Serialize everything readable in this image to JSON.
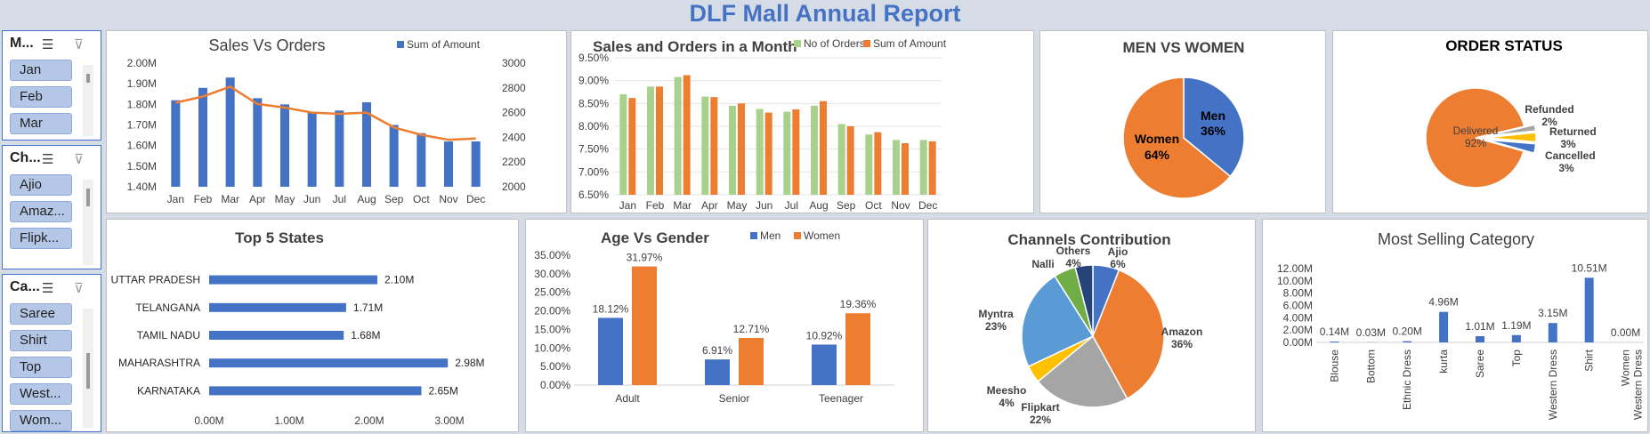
{
  "report_title": "DLF Mall Annual Report",
  "slicers": [
    {
      "title": "M...",
      "items": [
        "Jan",
        "Feb",
        "Mar"
      ]
    },
    {
      "title": "Ch...",
      "items": [
        "Ajio",
        "Amaz...",
        "Flipk..."
      ]
    },
    {
      "title": "Ca...",
      "items": [
        "Saree",
        "Shirt",
        "Top",
        "West...",
        "Wom..."
      ]
    }
  ],
  "slicer_icons": {
    "multiselect": "multi-select-icon",
    "clear_filter": "clear-filter-icon"
  },
  "colors": {
    "blue": "#4472c4",
    "orange": "#ed7d31",
    "green": "#a9d18e",
    "gray": "#a5a5a5",
    "yellow": "#ffc000",
    "lightblue": "#5b9bd5",
    "darkgreen": "#70ad47",
    "navy": "#264478"
  },
  "chart_data": [
    {
      "id": "sales_vs_orders",
      "type": "bar",
      "title": "Sales Vs Orders",
      "categories": [
        "Jan",
        "Feb",
        "Mar",
        "Apr",
        "May",
        "Jun",
        "Jul",
        "Aug",
        "Sep",
        "Oct",
        "Nov",
        "Dec"
      ],
      "series": [
        {
          "name": "Sum of Amount",
          "type": "bar",
          "axis": "left",
          "values": [
            1.82,
            1.88,
            1.93,
            1.83,
            1.8,
            1.76,
            1.77,
            1.81,
            1.7,
            1.66,
            1.62,
            1.62
          ]
        },
        {
          "type": "line",
          "axis": "right",
          "values": [
            2680,
            2730,
            2810,
            2670,
            2640,
            2600,
            2590,
            2600,
            2480,
            2420,
            2380,
            2390
          ]
        }
      ],
      "y_left_ticks": [
        "1.40M",
        "1.50M",
        "1.60M",
        "1.70M",
        "1.80M",
        "1.90M",
        "2.00M"
      ],
      "y_left_range": [
        1.4,
        2.0
      ],
      "y_right_ticks": [
        "2000",
        "2200",
        "2400",
        "2600",
        "2800",
        "3000"
      ],
      "y_right_range": [
        2000,
        3000
      ],
      "legend": "top-right"
    },
    {
      "id": "sales_orders_month",
      "type": "bar",
      "title": "Sales and Orders in a Month",
      "categories": [
        "Jan",
        "Feb",
        "Mar",
        "Apr",
        "May",
        "Jun",
        "Jul",
        "Aug",
        "Sep",
        "Oct",
        "Nov",
        "Dec"
      ],
      "series": [
        {
          "name": "No of Orders",
          "values": [
            8.7,
            8.87,
            9.08,
            8.65,
            8.45,
            8.38,
            8.32,
            8.45,
            8.05,
            7.82,
            7.7,
            7.7
          ]
        },
        {
          "name": "Sum of Amount",
          "values": [
            8.62,
            8.87,
            9.12,
            8.64,
            8.5,
            8.3,
            8.37,
            8.55,
            8.0,
            7.87,
            7.63,
            7.67
          ]
        }
      ],
      "y_ticks": [
        "6.50%",
        "7.00%",
        "7.50%",
        "8.00%",
        "8.50%",
        "9.00%",
        "9.50%"
      ],
      "y_range": [
        6.5,
        9.5
      ],
      "legend": "top-right"
    },
    {
      "id": "men_vs_women",
      "type": "pie",
      "title": "MEN VS WOMEN",
      "slices": [
        {
          "label": "Men",
          "pct": "36%",
          "value": 36
        },
        {
          "label": "Women",
          "pct": "64%",
          "value": 64
        }
      ]
    },
    {
      "id": "order_status",
      "type": "pie",
      "title": "ORDER STATUS",
      "slices": [
        {
          "label": "Delivered",
          "pct": "92%",
          "value": 92
        },
        {
          "label": "Refunded",
          "pct": "2%",
          "value": 2
        },
        {
          "label": "Returned",
          "pct": "3%",
          "value": 3
        },
        {
          "label": "Cancelled",
          "pct": "3%",
          "value": 3
        }
      ]
    },
    {
      "id": "top5_states",
      "type": "bar",
      "orientation": "horizontal",
      "title": "Top 5 States",
      "categories": [
        "UTTAR PRADESH",
        "TELANGANA",
        "TAMIL NADU",
        "MAHARASHTRA",
        "KARNATAKA"
      ],
      "values": [
        2.1,
        1.71,
        1.68,
        2.98,
        2.65
      ],
      "value_labels": [
        "2.10M",
        "1.71M",
        "1.68M",
        "2.98M",
        "2.65M"
      ],
      "x_ticks": [
        "0.00M",
        "1.00M",
        "2.00M",
        "3.00M"
      ],
      "x_range": [
        0,
        3.0
      ]
    },
    {
      "id": "age_vs_gender",
      "type": "bar",
      "title": "Age Vs Gender",
      "categories": [
        "Adult",
        "Senior",
        "Teenager"
      ],
      "series": [
        {
          "name": "Men",
          "values": [
            18.12,
            6.91,
            10.92
          ],
          "labels": [
            "18.12%",
            "6.91%",
            "10.92%"
          ]
        },
        {
          "name": "Women",
          "values": [
            31.97,
            12.71,
            19.36
          ],
          "labels": [
            "31.97%",
            "12.71%",
            "19.36%"
          ]
        }
      ],
      "y_ticks": [
        "0.00%",
        "5.00%",
        "10.00%",
        "15.00%",
        "20.00%",
        "25.00%",
        "30.00%",
        "35.00%"
      ],
      "y_range": [
        0,
        35
      ],
      "legend": "top-right"
    },
    {
      "id": "channels_contribution",
      "type": "pie",
      "title": "Channels Contribution",
      "slices": [
        {
          "label": "Ajio",
          "pct": "6%",
          "value": 6
        },
        {
          "label": "Amazon",
          "pct": "36%",
          "value": 36
        },
        {
          "label": "Flipkart",
          "pct": "22%",
          "value": 22
        },
        {
          "label": "Meesho",
          "pct": "4%",
          "value": 4
        },
        {
          "label": "Myntra",
          "pct": "23%",
          "value": 23
        },
        {
          "label": "Nalli",
          "pct": "",
          "value": 5
        },
        {
          "label": "Others",
          "pct": "4%",
          "value": 4
        }
      ]
    },
    {
      "id": "most_selling_category",
      "type": "bar",
      "title": "Most Selling Category",
      "categories": [
        "Blouse",
        "Bottom",
        "Ethnic Dress",
        "kurta",
        "Saree",
        "Top",
        "Western Dress",
        "Shirt",
        "Women Western Dress"
      ],
      "values": [
        0.14,
        0.03,
        0.2,
        4.96,
        1.01,
        1.19,
        3.15,
        10.51,
        0.0
      ],
      "value_labels": [
        "0.14M",
        "0.03M",
        "0.20M",
        "4.96M",
        "1.01M",
        "1.19M",
        "3.15M",
        "10.51M",
        "0.00M"
      ],
      "y_ticks": [
        "0.00M",
        "2.00M",
        "4.00M",
        "6.00M",
        "8.00M",
        "10.00M",
        "12.00M"
      ],
      "y_range": [
        0,
        12
      ]
    }
  ]
}
